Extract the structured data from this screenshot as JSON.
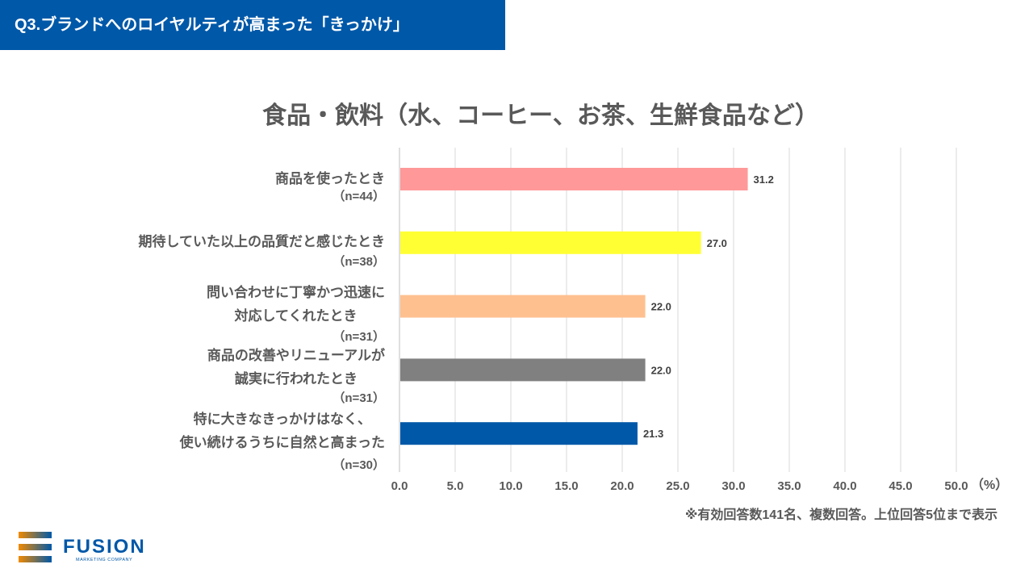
{
  "header": {
    "title": "Q3.ブランドへのロイヤルティが高まった「きっかけ」"
  },
  "chart_data": {
    "type": "bar",
    "orientation": "horizontal",
    "title": "食品・飲料（水、コーヒー、お茶、生鮮食品など）",
    "categories": [
      {
        "lines": [
          "商品を使ったとき"
        ],
        "n": "（n=44）"
      },
      {
        "lines": [
          "期待していた以上の品質だと感じたとき"
        ],
        "n": "（n=38）"
      },
      {
        "lines": [
          "問い合わせに丁寧かつ迅速に",
          "対応してくれたとき"
        ],
        "n": "（n=31）"
      },
      {
        "lines": [
          "商品の改善やリニューアルが",
          "誠実に行われたとき"
        ],
        "n": "（n=31）"
      },
      {
        "lines": [
          "特に大きなきっかけはなく、",
          "使い続けるうちに自然と高まった"
        ],
        "n": "（n=30）"
      }
    ],
    "values": [
      31.2,
      27.0,
      22.0,
      22.0,
      21.3
    ],
    "value_labels": [
      "31.2",
      "27.0",
      "22.0",
      "22.0",
      "21.3"
    ],
    "colors": [
      "#FF9999",
      "#FFFF33",
      "#FFC090",
      "#808080",
      "#0058A8"
    ],
    "xlim": [
      0,
      50
    ],
    "xticks": [
      "0.0",
      "5.0",
      "10.0",
      "15.0",
      "20.0",
      "25.0",
      "30.0",
      "35.0",
      "40.0",
      "45.0",
      "50.0"
    ],
    "xunit": "（%）",
    "grid": true
  },
  "footnote": "※有効回答数141名、複数回答。上位回答5位まで表示",
  "logo": {
    "name": "FUSION",
    "tagline": "MARKETING COMPANY"
  }
}
